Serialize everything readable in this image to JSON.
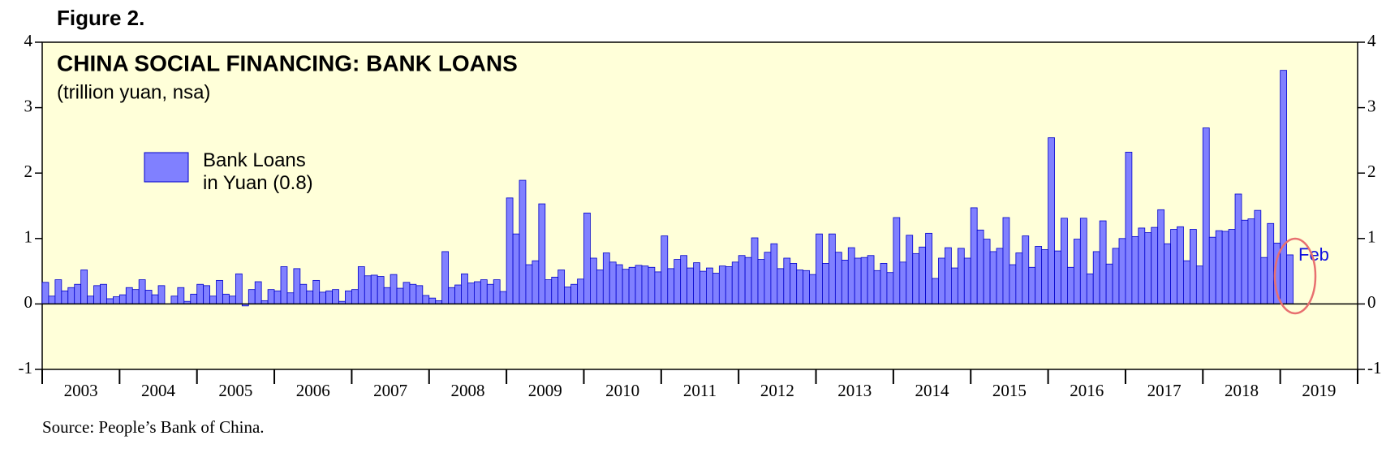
{
  "figure_label": "Figure 2.",
  "chart_data": {
    "type": "bar",
    "title": "CHINA SOCIAL FINANCING: BANK LOANS",
    "subtitle": "(trillion yuan, nsa)",
    "categories": [
      "2003",
      "2004",
      "2005",
      "2006",
      "2007",
      "2008",
      "2009",
      "2010",
      "2011",
      "2012",
      "2013",
      "2014",
      "2015",
      "2016",
      "2017",
      "2018",
      "2019"
    ],
    "series": [
      {
        "name": "Bank Loans\nin Yuan (0.8)",
        "color": "#8080ff",
        "values": [
          [
            0.33,
            0.12,
            0.37,
            0.2,
            0.25,
            0.3,
            0.52,
            0.12,
            0.28,
            0.3,
            0.08,
            0.11
          ],
          [
            0.14,
            0.25,
            0.22,
            0.37,
            0.21,
            0.14,
            0.28,
            0.0,
            0.12,
            0.25,
            0.04,
            0.15
          ],
          [
            0.3,
            0.28,
            0.12,
            0.36,
            0.15,
            0.12,
            0.46,
            -0.03,
            0.22,
            0.34,
            0.05,
            0.22
          ],
          [
            0.2,
            0.57,
            0.17,
            0.54,
            0.3,
            0.2,
            0.36,
            0.18,
            0.2,
            0.22,
            0.04,
            0.2
          ],
          [
            0.22,
            0.57,
            0.43,
            0.44,
            0.42,
            0.25,
            0.45,
            0.24,
            0.33,
            0.3,
            0.28,
            0.13
          ],
          [
            0.09,
            0.05,
            0.8,
            0.25,
            0.29,
            0.46,
            0.32,
            0.34,
            0.37,
            0.3,
            0.37,
            0.19
          ],
          [
            1.62,
            1.07,
            1.89,
            0.6,
            0.66,
            1.53,
            0.37,
            0.41,
            0.52,
            0.26,
            0.3,
            0.38
          ],
          [
            1.39,
            0.7,
            0.52,
            0.78,
            0.64,
            0.6,
            0.53,
            0.56,
            0.59,
            0.58,
            0.56,
            0.49
          ],
          [
            1.04,
            0.54,
            0.68,
            0.74,
            0.55,
            0.63,
            0.5,
            0.55,
            0.47,
            0.58,
            0.57,
            0.64
          ],
          [
            0.74,
            0.71,
            1.01,
            0.68,
            0.79,
            0.92,
            0.54,
            0.7,
            0.62,
            0.52,
            0.51,
            0.45
          ],
          [
            1.07,
            0.62,
            1.07,
            0.79,
            0.67,
            0.86,
            0.7,
            0.71,
            0.74,
            0.51,
            0.62,
            0.48
          ],
          [
            1.32,
            0.64,
            1.05,
            0.77,
            0.87,
            1.08,
            0.39,
            0.7,
            0.86,
            0.55,
            0.85,
            0.7
          ],
          [
            1.47,
            1.13,
            0.99,
            0.8,
            0.85,
            1.32,
            0.6,
            0.78,
            1.04,
            0.56,
            0.88,
            0.83
          ],
          [
            2.54,
            0.81,
            1.31,
            0.56,
            0.99,
            1.31,
            0.46,
            0.8,
            1.27,
            0.61,
            0.85,
            1.0
          ],
          [
            2.32,
            1.03,
            1.16,
            1.09,
            1.17,
            1.44,
            0.92,
            1.14,
            1.18,
            0.66,
            1.14,
            0.58
          ],
          [
            2.69,
            1.02,
            1.12,
            1.11,
            1.14,
            1.68,
            1.28,
            1.3,
            1.43,
            0.71,
            1.23,
            0.93
          ],
          [
            3.57,
            0.75
          ]
        ]
      }
    ],
    "annotation": "Feb",
    "ylim": [
      -1,
      4
    ],
    "yticks": [
      -1,
      0,
      1,
      2,
      3,
      4
    ],
    "source": "Source: People’s Bank of China."
  }
}
